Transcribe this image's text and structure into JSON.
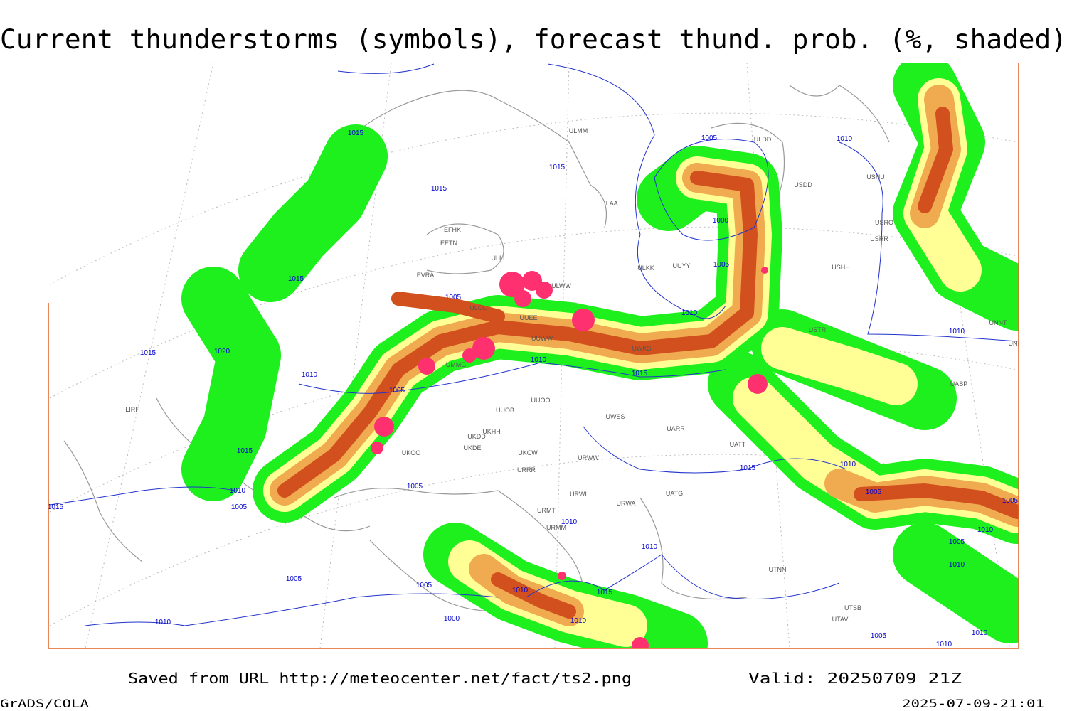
{
  "title": "Current thunderstorms (symbols), forecast thund. prob. (%, shaded)",
  "footer": {
    "source": "Saved from URL http://meteocenter.net/fact/ts2.png",
    "valid": "Valid: 20250709 21Z",
    "software": "GrADS/COLA",
    "timestamp": "2025-07-09-21:01"
  },
  "isobars": [
    "1015",
    "1015",
    "1015",
    "1005",
    "1010",
    "1000",
    "1005",
    "1015",
    "1005",
    "1010",
    "1015",
    "1020",
    "1010",
    "1010",
    "1015",
    "1005",
    "1010",
    "1015",
    "1015",
    "1010",
    "1005",
    "1010",
    "1005",
    "1005",
    "1015",
    "1010",
    "1010",
    "1005",
    "1010",
    "1005",
    "1010",
    "1005",
    "1005",
    "1010",
    "1015",
    "1000",
    "1010",
    "1010",
    "1005",
    "1010",
    "1010"
  ],
  "stations": [
    "ULMM",
    "ULDD",
    "USDD",
    "USHU",
    "ULAA",
    "EFHK",
    "EETN",
    "USRO",
    "USRR",
    "ULLI",
    "ULKK",
    "UUYY",
    "USHH",
    "EVRA",
    "ULWW",
    "ULOL",
    "UUEE",
    "UUWW",
    "UWKS",
    "UMMG",
    "UUOB",
    "UUOO",
    "UWSS",
    "UARR",
    "UATT",
    "UKHH",
    "UKDD",
    "UKDE",
    "UKOO",
    "UKCW",
    "URRR",
    "URWW",
    "URWI",
    "UATG",
    "URWA",
    "URMT",
    "URMM",
    "UTNN",
    "USTR",
    "UNNT",
    "UNBB",
    "UASP",
    "UTAV",
    "UTSB",
    "LIRF"
  ]
}
